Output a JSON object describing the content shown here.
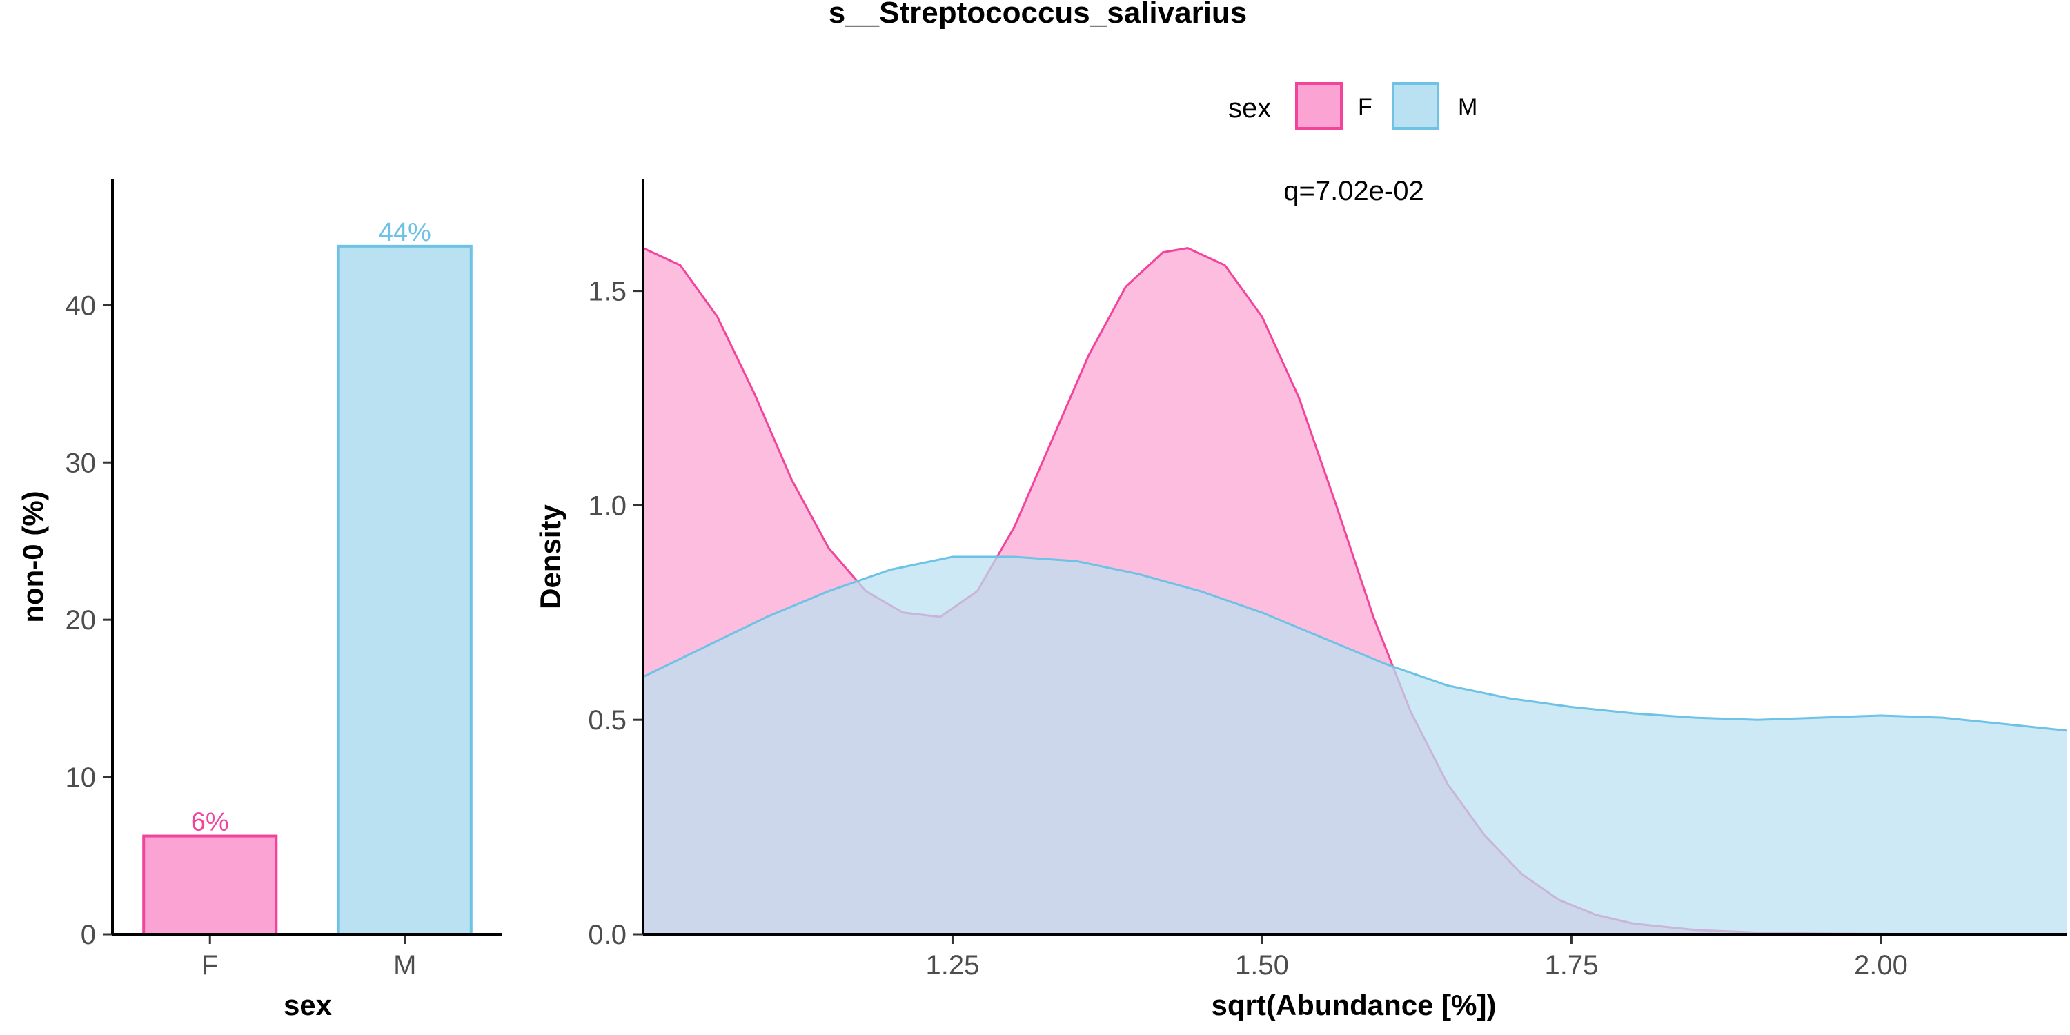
{
  "title": "s__Streptococcus_salivarius",
  "legend": {
    "title": "sex",
    "items": [
      {
        "label": "F",
        "fill": "#FBA3D2",
        "stroke": "#F2449D"
      },
      {
        "label": "M",
        "fill": "#BAE1F1",
        "stroke": "#6EC2E5"
      }
    ]
  },
  "chart_data": [
    {
      "type": "bar",
      "xlabel": "sex",
      "ylabel": "non-0 (%)",
      "categories": [
        "F",
        "M"
      ],
      "values": [
        6.25,
        43.75
      ],
      "value_labels": [
        "6%",
        "44%"
      ],
      "colors": [
        {
          "fill": "#FBA3D2",
          "stroke": "#F2449D",
          "label": "#F2449D"
        },
        {
          "fill": "#BAE1F1",
          "stroke": "#6EC2E5",
          "label": "#6EC2E5"
        }
      ],
      "ylim": [
        0,
        48
      ],
      "yticks": [
        0,
        10,
        20,
        30,
        40
      ],
      "ytick_labels": [
        "0",
        "10",
        "20",
        "30",
        "40"
      ]
    },
    {
      "type": "area",
      "xlabel": "sqrt(Abundance [%])",
      "ylabel": "Density",
      "annotation": "q=7.02e-02",
      "xlim": [
        1.0,
        2.15
      ],
      "ylim": [
        0,
        1.76
      ],
      "xticks": [
        1.25,
        1.5,
        1.75,
        2.0
      ],
      "xtick_labels": [
        "1.25",
        "1.50",
        "1.75",
        "2.00"
      ],
      "yticks": [
        0,
        0.5,
        1.0,
        1.5
      ],
      "ytick_labels": [
        "0.0",
        "0.5",
        "1.0",
        "1.5"
      ],
      "series": [
        {
          "name": "F",
          "fill": "#FBA3D2",
          "stroke": "#F2449D",
          "x": [
            1.0,
            1.03,
            1.06,
            1.09,
            1.12,
            1.15,
            1.18,
            1.21,
            1.24,
            1.27,
            1.3,
            1.33,
            1.36,
            1.39,
            1.42,
            1.44,
            1.47,
            1.5,
            1.53,
            1.56,
            1.59,
            1.62,
            1.65,
            1.68,
            1.71,
            1.74,
            1.77,
            1.8,
            1.85,
            1.9,
            1.95,
            2.0,
            2.05,
            2.1,
            2.15
          ],
          "y": [
            1.6,
            1.56,
            1.44,
            1.26,
            1.06,
            0.9,
            0.8,
            0.75,
            0.74,
            0.8,
            0.95,
            1.15,
            1.35,
            1.51,
            1.59,
            1.6,
            1.56,
            1.44,
            1.25,
            1.0,
            0.74,
            0.52,
            0.35,
            0.23,
            0.14,
            0.08,
            0.045,
            0.025,
            0.01,
            0.004,
            0.002,
            0.001,
            0.0,
            0.0,
            0.0
          ]
        },
        {
          "name": "M",
          "fill": "#BAE1F1",
          "stroke": "#6EC2E5",
          "x": [
            1.0,
            1.05,
            1.1,
            1.15,
            1.2,
            1.25,
            1.3,
            1.35,
            1.4,
            1.45,
            1.5,
            1.55,
            1.6,
            1.65,
            1.7,
            1.75,
            1.8,
            1.85,
            1.9,
            1.95,
            2.0,
            2.05,
            2.1,
            2.15
          ],
          "y": [
            0.6,
            0.67,
            0.74,
            0.8,
            0.85,
            0.88,
            0.88,
            0.87,
            0.84,
            0.8,
            0.75,
            0.69,
            0.63,
            0.58,
            0.55,
            0.53,
            0.515,
            0.505,
            0.5,
            0.505,
            0.51,
            0.505,
            0.49,
            0.475
          ]
        }
      ]
    }
  ]
}
